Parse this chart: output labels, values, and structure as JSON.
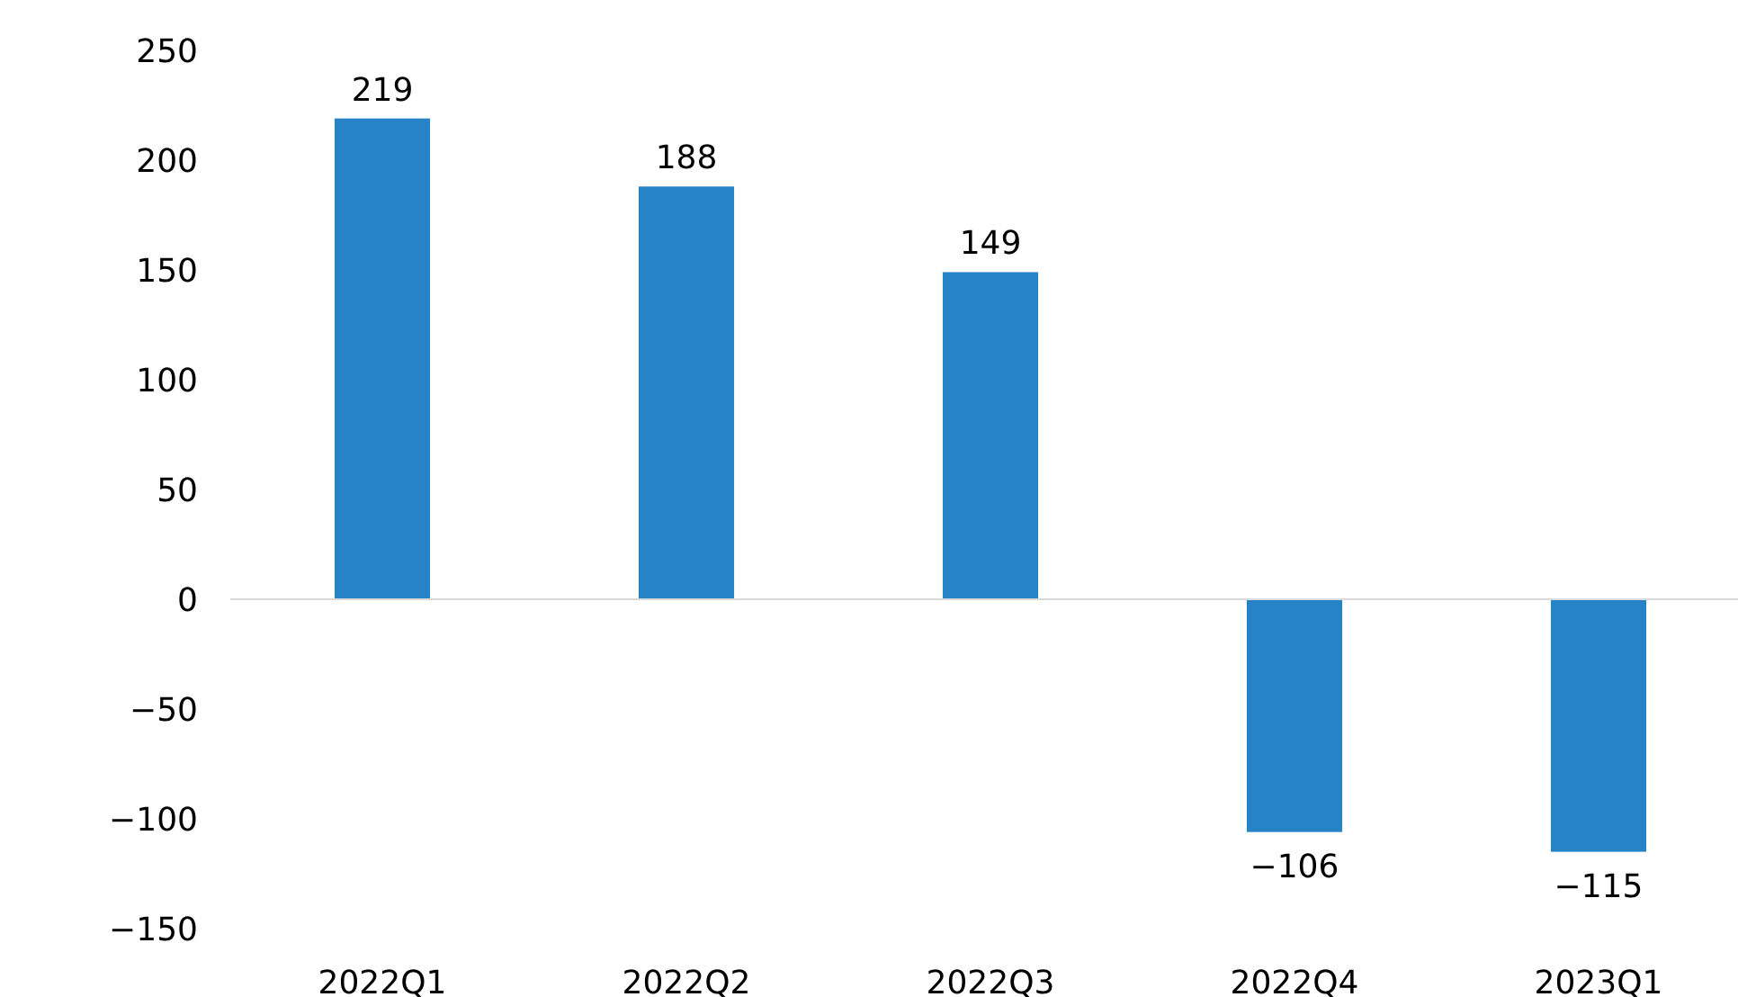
{
  "chart_data": {
    "type": "bar",
    "categories": [
      "2022Q1",
      "2022Q2",
      "2022Q3",
      "2022Q4",
      "2023Q1"
    ],
    "values": [
      219,
      188,
      149,
      -106,
      -115
    ],
    "color": "#2683c6",
    "ylim": [
      -150,
      250
    ],
    "yticks": [
      -150,
      -100,
      -50,
      0,
      50,
      100,
      150,
      200,
      250
    ],
    "data_labels": true
  }
}
